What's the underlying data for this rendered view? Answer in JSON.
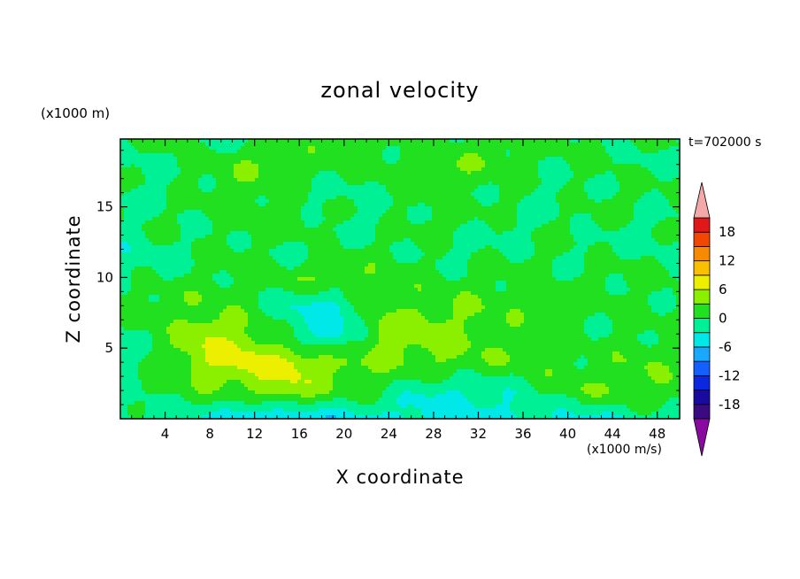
{
  "chart_data": {
    "type": "heatmap",
    "title": "zonal velocity",
    "xlabel": "X coordinate",
    "ylabel": "Z coordinate",
    "x_units": "(x1000 m/s)",
    "y_units": "(x1000 m)",
    "time_label": "t=702000 s",
    "xlim": [
      0,
      50
    ],
    "ylim": [
      0,
      19.8
    ],
    "x_ticks": [
      4,
      8,
      12,
      16,
      20,
      24,
      28,
      32,
      36,
      40,
      44,
      48
    ],
    "y_ticks": [
      5,
      10,
      15
    ],
    "colorbar": {
      "labels": [
        18,
        12,
        6,
        0,
        -6,
        -12,
        -18
      ],
      "levels": [
        -21,
        -18,
        -15,
        -12,
        -9,
        -6,
        -3,
        0,
        3,
        6,
        9,
        12,
        15,
        18,
        21
      ],
      "colors": [
        "#3a0a80",
        "#1a0aa0",
        "#0a28e0",
        "#1460ff",
        "#18a8ff",
        "#00e8e8",
        "#00f096",
        "#20e020",
        "#8af000",
        "#ecf000",
        "#f8c000",
        "#f88a00",
        "#f04800",
        "#e01818"
      ],
      "extend_low_color": "#8a0aa0",
      "extend_high_color": "#f4a8a8"
    },
    "z_grid": {
      "nx": 14,
      "ny": 11,
      "x_range": [
        0,
        50
      ],
      "y_range": [
        0,
        19.8
      ],
      "values": [
        [
          -1,
          -2,
          -3,
          -7,
          -6,
          -5,
          -4,
          -4,
          -5,
          -4,
          -3,
          -4,
          -2,
          -2
        ],
        [
          -1,
          1,
          2,
          3,
          6,
          2,
          1,
          -3,
          -3,
          -2,
          1,
          3,
          2,
          3
        ],
        [
          -2,
          2,
          6,
          8,
          7,
          4,
          3,
          3,
          3,
          2,
          2,
          1,
          3,
          1
        ],
        [
          -1,
          1,
          6,
          4,
          -1,
          -5,
          4,
          5,
          3,
          2,
          1,
          0,
          1,
          0
        ],
        [
          1,
          2,
          3,
          1,
          -3,
          -4,
          2,
          3,
          3,
          2,
          2,
          1,
          0,
          1
        ],
        [
          -1,
          0,
          1,
          1,
          2,
          3,
          2,
          1,
          1,
          1,
          0,
          1,
          1,
          0
        ],
        [
          -2,
          -1,
          0,
          1,
          -1,
          0,
          1,
          0,
          -1,
          0,
          1,
          -1,
          0,
          -1
        ],
        [
          -1,
          1,
          0,
          1,
          2,
          0,
          -1,
          1,
          1,
          -1,
          0,
          1,
          -1,
          0
        ],
        [
          0,
          -1,
          1,
          2,
          0,
          -1,
          0,
          1,
          0,
          1,
          -1,
          0,
          1,
          0
        ],
        [
          -1,
          0,
          1,
          3,
          2,
          1,
          1,
          2,
          3,
          1,
          0,
          1,
          -1,
          0
        ],
        [
          0,
          1,
          -1,
          0,
          1,
          2,
          1,
          0,
          1,
          2,
          1,
          0,
          1,
          0
        ]
      ]
    }
  }
}
